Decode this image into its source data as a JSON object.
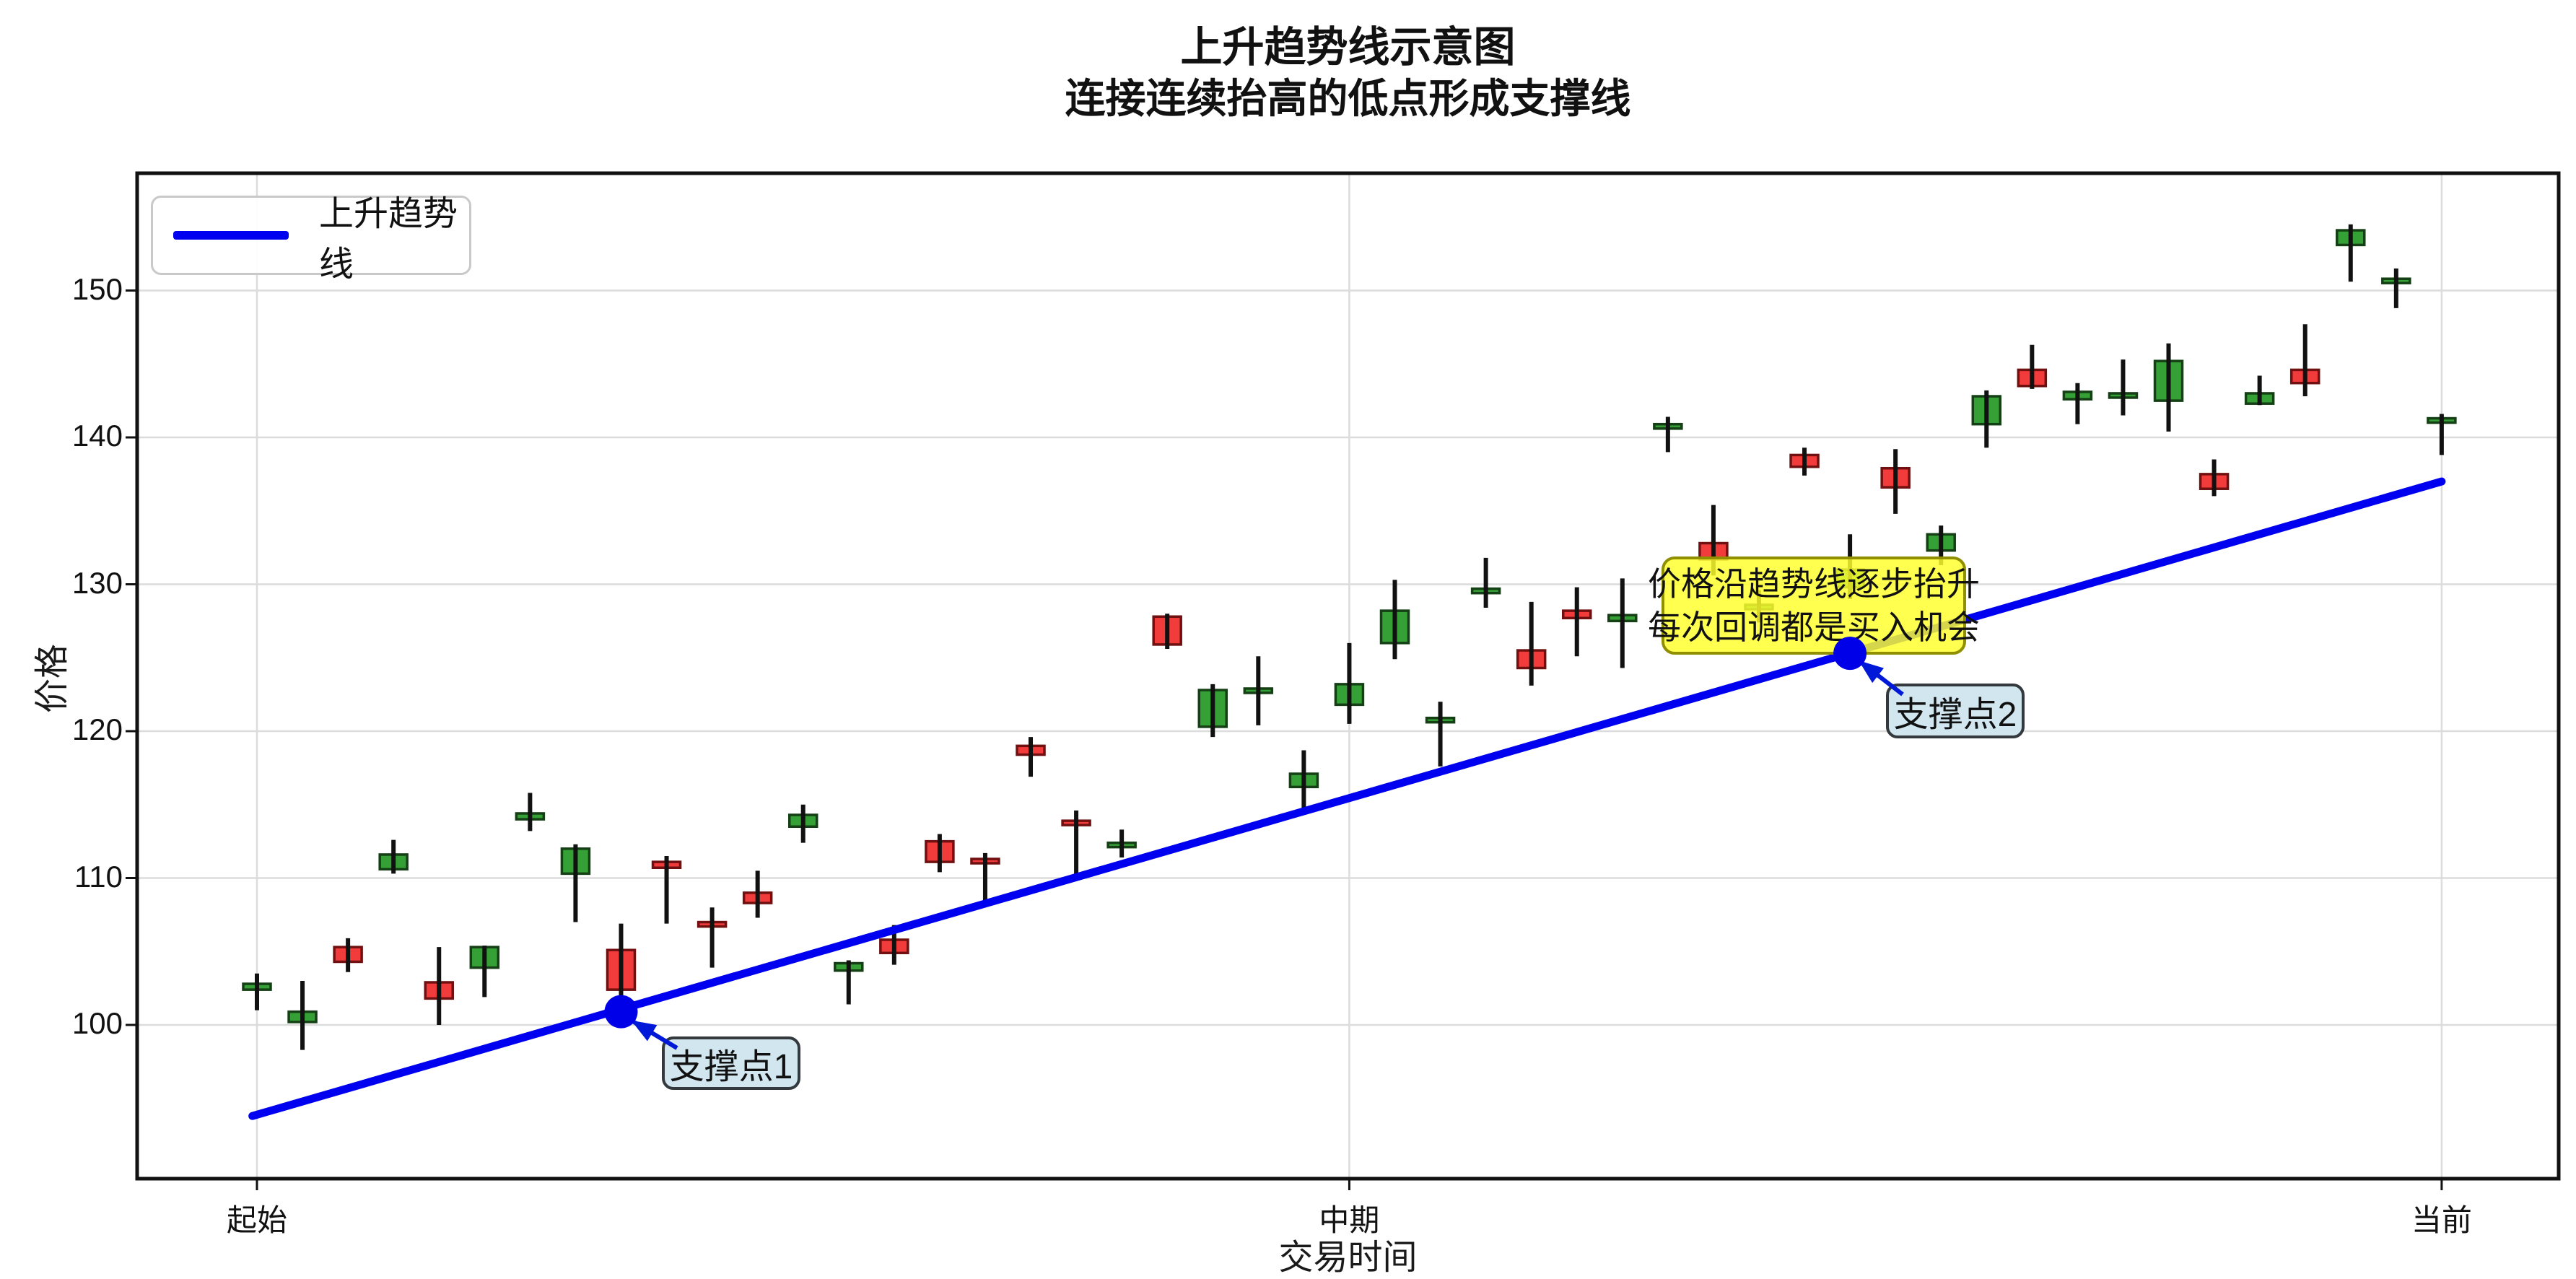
{
  "figure": {
    "title_line1": "上升趋势线示意图",
    "title_line2": "连接连续抬高的低点形成支撑线"
  },
  "axes": {
    "ylabel": "价格",
    "xlabel": "交易时间"
  },
  "legend": {
    "label": "上升趋势线"
  },
  "annotations": {
    "note_line1": "价格沿趋势线逐步抬升",
    "note_line2": "每次回调都是买入机会",
    "support1": "支撑点1",
    "support2": "支撑点2"
  },
  "chart_data": {
    "type": "candlestick",
    "title": "上升趋势线示意图 连接连续抬高的低点形成支撑线",
    "xlabel": "交易时间",
    "ylabel": "价格",
    "ylim": [
      89.5,
      158
    ],
    "yticks": [
      100,
      110,
      120,
      130,
      140,
      150
    ],
    "xticks": [
      {
        "label": "起始",
        "index": 0
      },
      {
        "label": "中期",
        "index": 24
      },
      {
        "label": "当前",
        "index": 48
      }
    ],
    "grid": true,
    "legend_position": "upper-left",
    "up_color": "#f23b3b",
    "down_color": "#35a035",
    "up_edge_color": "#701010",
    "down_edge_color": "#153f15",
    "wick_color": "#111111",
    "trend_color": "#0000f0",
    "candles_ohlc": [
      [
        102.8,
        103.5,
        101.0,
        102.4
      ],
      [
        100.9,
        103.0,
        98.3,
        100.2
      ],
      [
        104.3,
        105.9,
        103.6,
        105.3
      ],
      [
        111.6,
        112.6,
        110.3,
        110.6
      ],
      [
        101.8,
        105.3,
        100.0,
        102.9
      ],
      [
        105.3,
        105.4,
        101.9,
        103.9
      ],
      [
        114.4,
        115.8,
        113.2,
        114.0
      ],
      [
        112.0,
        112.3,
        107.0,
        110.3
      ],
      [
        102.4,
        106.9,
        102.0,
        105.1
      ],
      [
        110.7,
        111.5,
        106.9,
        111.1
      ],
      [
        106.7,
        108.0,
        103.9,
        107.0
      ],
      [
        108.3,
        110.5,
        107.3,
        109.0
      ],
      [
        114.3,
        115.0,
        112.4,
        113.5
      ],
      [
        104.2,
        104.4,
        101.4,
        103.7
      ],
      [
        104.9,
        106.8,
        104.1,
        105.8
      ],
      [
        111.1,
        113.0,
        110.4,
        112.5
      ],
      [
        111.1,
        111.7,
        108.4,
        111.3
      ],
      [
        118.4,
        119.6,
        116.9,
        119.0
      ],
      [
        113.7,
        114.6,
        110.0,
        113.9
      ],
      [
        112.4,
        113.3,
        111.4,
        112.2
      ],
      [
        125.9,
        128.0,
        125.6,
        127.8
      ],
      [
        122.8,
        123.2,
        119.6,
        120.3
      ],
      [
        122.9,
        125.1,
        120.4,
        122.7
      ],
      [
        117.1,
        118.7,
        114.5,
        116.2
      ],
      [
        123.2,
        126.0,
        120.5,
        121.8
      ],
      [
        128.2,
        130.3,
        124.9,
        126.0
      ],
      [
        120.9,
        122.0,
        117.6,
        120.7
      ],
      [
        129.7,
        131.8,
        128.4,
        129.4
      ],
      [
        124.3,
        128.8,
        123.1,
        125.5
      ],
      [
        127.7,
        129.8,
        125.1,
        128.2
      ],
      [
        127.9,
        130.4,
        124.3,
        127.5
      ],
      [
        140.9,
        141.4,
        139.0,
        140.6
      ],
      [
        131.7,
        135.4,
        130.6,
        132.8
      ],
      [
        128.6,
        129.6,
        127.4,
        128.4
      ],
      [
        138.0,
        139.3,
        137.4,
        138.8
      ],
      [
        131.0,
        133.4,
        129.0,
        129.8
      ],
      [
        136.6,
        139.2,
        134.8,
        137.9
      ],
      [
        133.4,
        134.0,
        131.3,
        132.3
      ],
      [
        142.8,
        143.2,
        139.3,
        140.9
      ],
      [
        143.5,
        146.3,
        143.3,
        144.6
      ],
      [
        143.1,
        143.7,
        140.9,
        142.6
      ],
      [
        143.0,
        145.3,
        141.5,
        142.8
      ],
      [
        145.2,
        146.4,
        140.4,
        142.5
      ],
      [
        136.5,
        138.5,
        136.0,
        137.5
      ],
      [
        143.0,
        144.2,
        142.2,
        142.3
      ],
      [
        143.7,
        147.7,
        142.8,
        144.6
      ],
      [
        154.1,
        154.5,
        150.6,
        153.1
      ],
      [
        150.8,
        151.5,
        148.8,
        150.6
      ],
      [
        141.3,
        141.6,
        138.8,
        141.1
      ]
    ],
    "trendline": {
      "name": "上升趋势线",
      "start_index": -0.1,
      "end_index": 48,
      "start_price": 93.8,
      "end_price": 137.0
    },
    "support_points": [
      {
        "label": "支撑点1",
        "index": 8,
        "price": 100.9
      },
      {
        "label": "支撑点2",
        "index": 35,
        "price": 125.3
      }
    ]
  }
}
